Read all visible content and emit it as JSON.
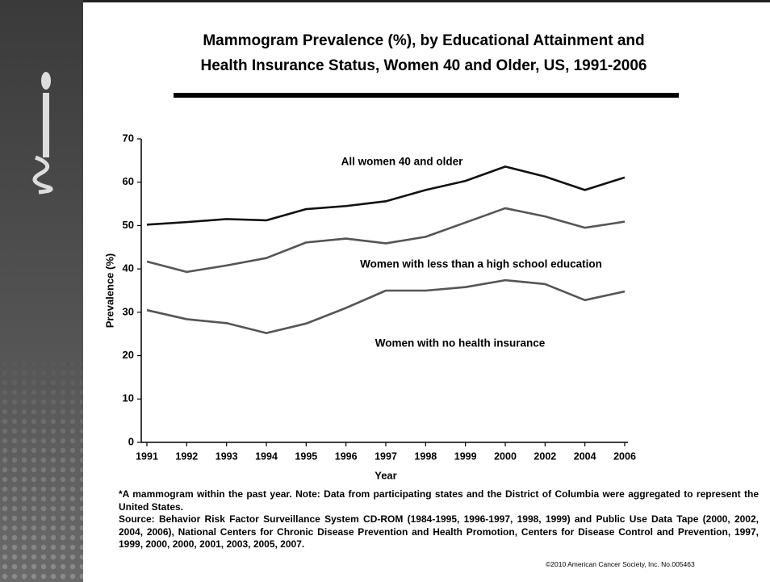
{
  "chart_data": {
    "type": "line",
    "title": [
      "Mammogram Prevalence (%), by Educational Attainment and",
      "Health Insurance Status, Women 40 and Older, US, 1991-2006"
    ],
    "y_label": "Prevalence (%)",
    "x_label": "Year",
    "categories": [
      "1991",
      "1992",
      "1993",
      "1994",
      "1995",
      "1996",
      "1997",
      "1998",
      "1999",
      "2000",
      "2002",
      "2004",
      "2006"
    ],
    "series": [
      {
        "name": "All women 40 and older",
        "color": "#111111",
        "values": [
          50.2,
          50.8,
          51.5,
          51.2,
          53.8,
          54.5,
          55.6,
          58.2,
          60.3,
          63.6,
          61.3,
          58.2,
          61.1
        ]
      },
      {
        "name": "Women with less than a high school education",
        "color": "#555555",
        "values": [
          41.7,
          39.3,
          40.8,
          42.5,
          46.1,
          47.0,
          45.9,
          47.4,
          50.7,
          54.0,
          52.1,
          49.5,
          50.9
        ]
      },
      {
        "name": "Women with no health insurance",
        "color": "#555555",
        "values": [
          30.5,
          28.4,
          27.5,
          25.2,
          27.4,
          31.0,
          35.0,
          35.0,
          35.8,
          37.4,
          36.5,
          32.8,
          34.8
        ]
      }
    ],
    "ylim": [
      0,
      70
    ],
    "yticks": [
      0,
      10,
      20,
      30,
      40,
      50,
      60,
      70
    ],
    "grid": false
  },
  "notes": {
    "note": "*A mammogram within the past year. Note: Data from participating states and the District of Columbia were aggregated to represent the United States.",
    "source": "Source: Behavior Risk Factor Surveillance System CD-ROM (1984-1995, 1996-1997, 1998, 1999) and Public Use Data Tape (2000, 2002, 2004, 2006), National Centers for Chronic Disease Prevention and Health Promotion, Centers for Disease Control and Prevention, 1997, 1999, 2000, 2000, 2001, 2003, 2005, 2007.",
    "copyright": "©2010 American Cancer Society, Inc. No.005463"
  }
}
